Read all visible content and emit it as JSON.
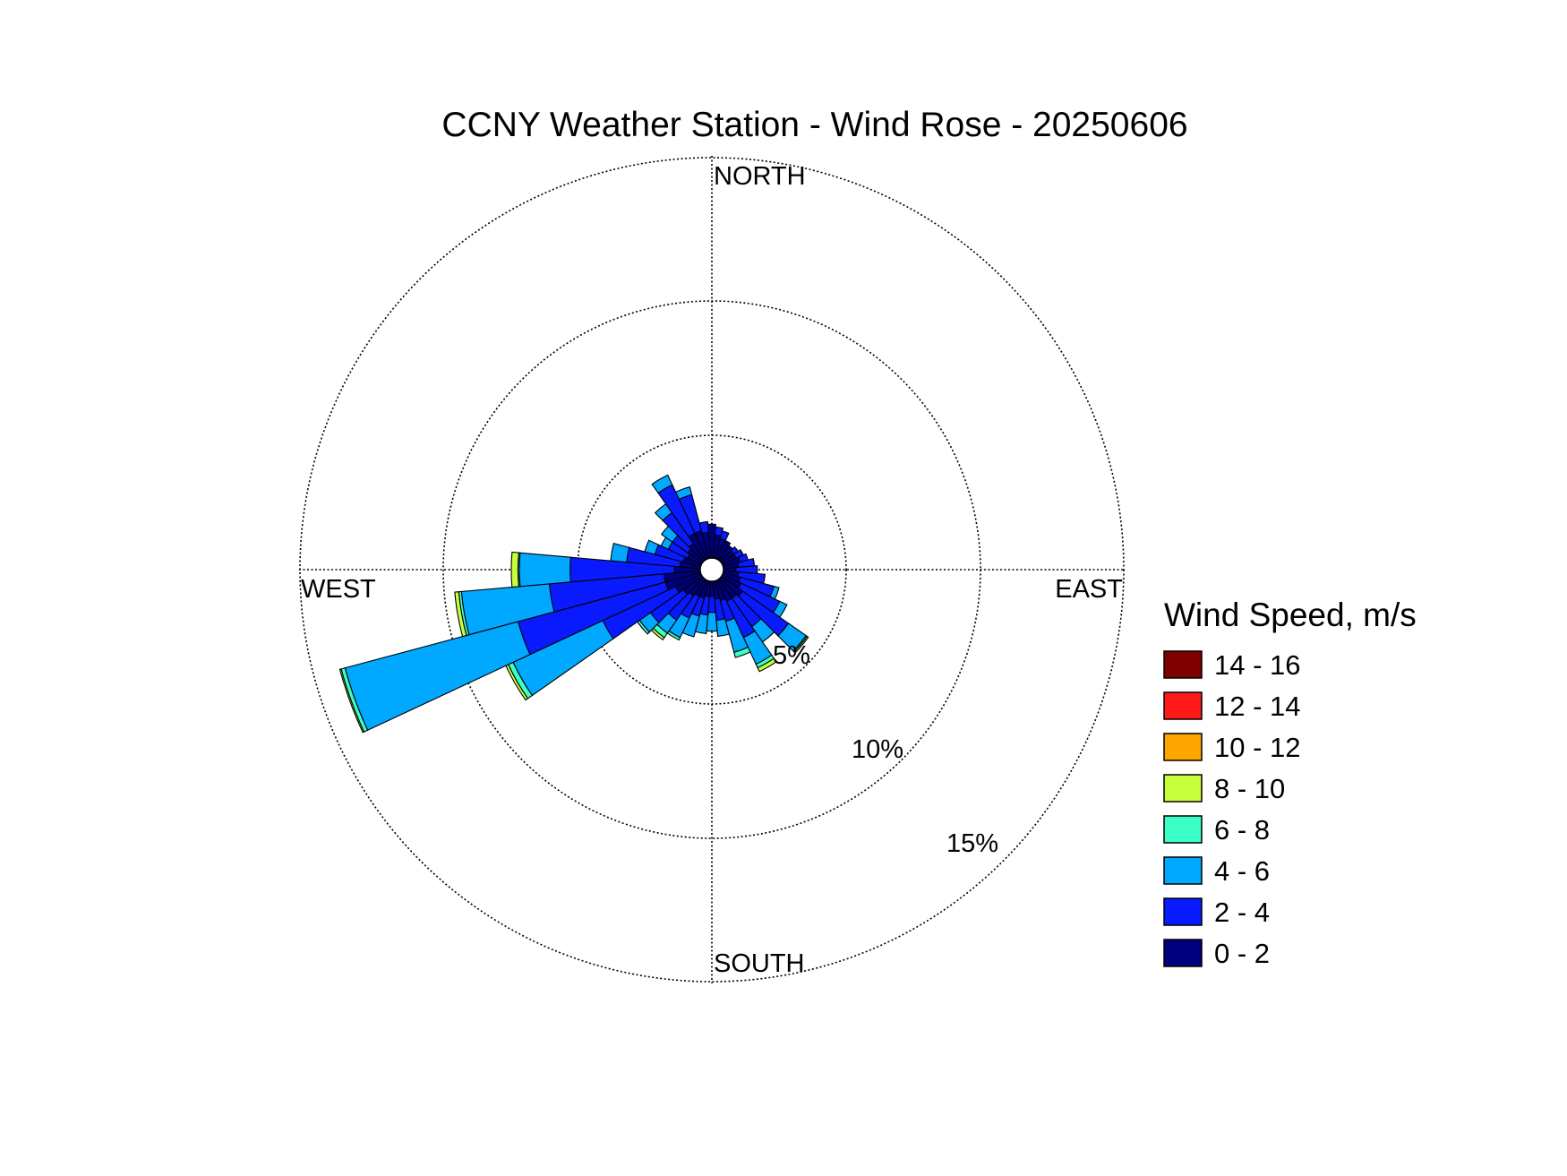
{
  "chart_data": {
    "type": "wind-rose",
    "title": "CCNY Weather Station - Wind Rose - 20250606",
    "directions": {
      "north": "NORTH",
      "south": "SOUTH",
      "east": "EAST",
      "west": "WEST"
    },
    "ring_labels": [
      "5%",
      "10%",
      "15%"
    ],
    "ring_values": [
      5,
      10,
      15
    ],
    "rmax": 15.4,
    "calm_marker": true,
    "legend": {
      "title": "Wind Speed, m/s",
      "placement": "right",
      "bins": [
        {
          "label": "14 - 16",
          "color": "#7f0000"
        },
        {
          "label": "12 - 14",
          "color": "#ff1a1a"
        },
        {
          "label": "10 - 12",
          "color": "#ffa500"
        },
        {
          "label": "8 - 10",
          "color": "#c8ff3c"
        },
        {
          "label": "6 - 8",
          "color": "#3cffc8"
        },
        {
          "label": "4 - 6",
          "color": "#00a8ff"
        },
        {
          "label": "2 - 4",
          "color": "#0a1aff"
        },
        {
          "label": "0 - 2",
          "color": "#00007f"
        }
      ]
    },
    "stack_order": [
      "0 - 2",
      "2 - 4",
      "4 - 6",
      "6 - 8",
      "8 - 10",
      "10 - 12",
      "12 - 14",
      "14 - 16"
    ],
    "sector_width_deg": 10,
    "sectors": [
      {
        "dir": 0,
        "cum": [
          1.7
        ]
      },
      {
        "dir": 10,
        "cum": [
          1.3,
          1.6
        ]
      },
      {
        "dir": 20,
        "cum": [
          1.2,
          1.5
        ]
      },
      {
        "dir": 30,
        "cum": [
          1.2
        ]
      },
      {
        "dir": 40,
        "cum": [
          1.1
        ]
      },
      {
        "dir": 50,
        "cum": [
          1.0,
          1.2
        ]
      },
      {
        "dir": 60,
        "cum": [
          1.0,
          1.3
        ]
      },
      {
        "dir": 70,
        "cum": [
          1.1,
          1.4
        ]
      },
      {
        "dir": 80,
        "cum": [
          1.0,
          1.6
        ]
      },
      {
        "dir": 90,
        "cum": [
          0.9,
          1.7
        ]
      },
      {
        "dir": 100,
        "cum": [
          1.0,
          2.0
        ]
      },
      {
        "dir": 110,
        "cum": [
          1.1,
          2.4,
          2.6
        ]
      },
      {
        "dir": 120,
        "cum": [
          1.2,
          2.8,
          3.1
        ]
      },
      {
        "dir": 130,
        "cum": [
          1.4,
          3.5,
          4.3,
          4.35,
          4.4
        ]
      },
      {
        "dir": 140,
        "cum": [
          1.3,
          2.6,
          3.3
        ]
      },
      {
        "dir": 150,
        "cum": [
          1.3,
          2.8,
          3.9,
          4.05,
          4.2
        ]
      },
      {
        "dir": 160,
        "cum": [
          1.2,
          2.0,
          3.2,
          3.4
        ]
      },
      {
        "dir": 170,
        "cum": [
          1.1,
          1.9,
          2.5
        ]
      },
      {
        "dir": 180,
        "cum": [
          1.0,
          1.6,
          2.3
        ]
      },
      {
        "dir": 190,
        "cum": [
          1.0,
          1.7,
          2.4
        ]
      },
      {
        "dir": 200,
        "cum": [
          1.1,
          1.8,
          2.6
        ]
      },
      {
        "dir": 210,
        "cum": [
          1.1,
          2.0,
          2.8,
          2.9
        ]
      },
      {
        "dir": 220,
        "cum": [
          1.2,
          2.3,
          2.9,
          3.1,
          3.2
        ]
      },
      {
        "dir": 230,
        "cum": [
          1.3,
          2.8,
          3.3,
          3.4
        ]
      },
      {
        "dir": 240,
        "cum": [
          1.5,
          4.5,
          8.2,
          8.4,
          8.5
        ]
      },
      {
        "dir": 250,
        "cum": [
          1.8,
          7.5,
          14.2,
          14.35,
          14.4
        ]
      },
      {
        "dir": 260,
        "cum": [
          1.8,
          6.1,
          9.4,
          9.5,
          9.65
        ]
      },
      {
        "dir": 270,
        "cum": [
          1.4,
          5.3,
          7.2,
          7.25,
          7.5
        ]
      },
      {
        "dir": 280,
        "cum": [
          1.2,
          3.2,
          3.8
        ]
      },
      {
        "dir": 290,
        "cum": [
          1.1,
          2.2,
          2.6
        ]
      },
      {
        "dir": 300,
        "cum": [
          1.0,
          1.8,
          2.1
        ]
      },
      {
        "dir": 310,
        "cum": [
          1.1,
          1.8,
          2.3
        ]
      },
      {
        "dir": 320,
        "cum": [
          1.2,
          2.6,
          3.0
        ]
      },
      {
        "dir": 330,
        "cum": [
          1.5,
          3.5,
          3.9
        ]
      },
      {
        "dir": 340,
        "cum": [
          1.5,
          2.9,
          3.2
        ]
      },
      {
        "dir": 350,
        "cum": [
          1.4,
          1.8
        ]
      }
    ]
  }
}
